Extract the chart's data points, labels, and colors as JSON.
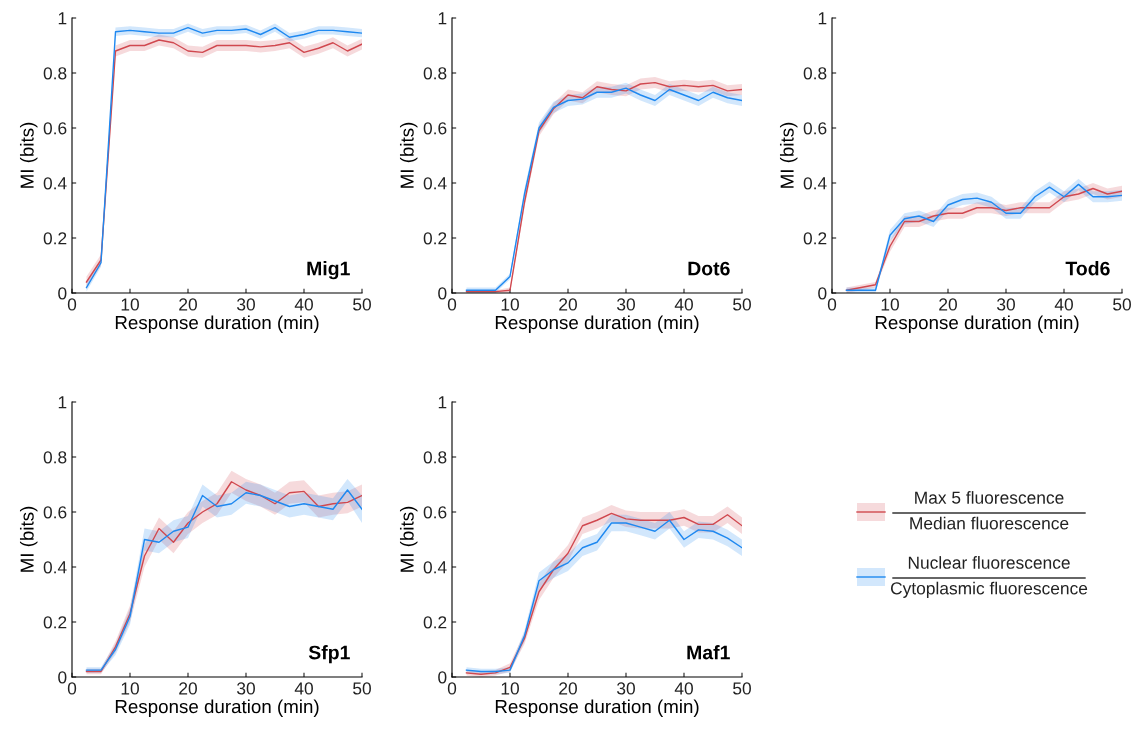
{
  "chart_data": [
    {
      "type": "line",
      "xlabel": "Response duration (min)",
      "ylabel": "MI (bits)",
      "annotations": [
        "Mig1"
      ],
      "xlim": [
        0,
        50
      ],
      "ylim": [
        0,
        1
      ],
      "xticks": [
        0,
        10,
        20,
        30,
        40,
        50
      ],
      "yticks": [
        0,
        0.2,
        0.4,
        0.6,
        0.8,
        1
      ],
      "grid": false,
      "legend": false,
      "marker": "none",
      "line_style": "solid",
      "x": [
        2.5,
        5,
        7.5,
        10,
        12.5,
        15,
        17.5,
        20,
        22.5,
        25,
        27.5,
        30,
        32.5,
        35,
        37.5,
        40,
        42.5,
        45,
        47.5,
        50
      ],
      "series": [
        {
          "color": "#d0484f",
          "values": [
            0.04,
            0.12,
            0.88,
            0.9,
            0.9,
            0.92,
            0.91,
            0.88,
            0.875,
            0.9,
            0.9,
            0.9,
            0.895,
            0.9,
            0.91,
            0.875,
            0.89,
            0.91,
            0.88,
            0.905
          ],
          "lower": [
            0.02,
            0.1,
            0.86,
            0.88,
            0.88,
            0.9,
            0.89,
            0.86,
            0.855,
            0.88,
            0.88,
            0.88,
            0.875,
            0.88,
            0.89,
            0.855,
            0.87,
            0.89,
            0.86,
            0.885
          ],
          "upper": [
            0.06,
            0.14,
            0.9,
            0.92,
            0.92,
            0.94,
            0.93,
            0.9,
            0.895,
            0.92,
            0.92,
            0.92,
            0.915,
            0.92,
            0.93,
            0.895,
            0.91,
            0.93,
            0.9,
            0.925
          ]
        },
        {
          "color": "#1e88f0",
          "values": [
            0.02,
            0.11,
            0.95,
            0.955,
            0.95,
            0.945,
            0.945,
            0.965,
            0.945,
            0.955,
            0.955,
            0.96,
            0.94,
            0.965,
            0.93,
            0.94,
            0.955,
            0.955,
            0.95,
            0.945
          ],
          "lower": [
            0.005,
            0.095,
            0.935,
            0.94,
            0.935,
            0.93,
            0.93,
            0.95,
            0.93,
            0.94,
            0.94,
            0.945,
            0.925,
            0.95,
            0.915,
            0.925,
            0.94,
            0.94,
            0.935,
            0.93
          ],
          "upper": [
            0.035,
            0.125,
            0.965,
            0.97,
            0.965,
            0.96,
            0.96,
            0.98,
            0.96,
            0.97,
            0.97,
            0.975,
            0.955,
            0.98,
            0.945,
            0.955,
            0.97,
            0.97,
            0.965,
            0.96
          ]
        }
      ]
    },
    {
      "type": "line",
      "xlabel": "Response duration (min)",
      "ylabel": "MI (bits)",
      "annotations": [
        "Dot6"
      ],
      "xlim": [
        0,
        50
      ],
      "ylim": [
        0,
        1
      ],
      "xticks": [
        0,
        10,
        20,
        30,
        40,
        50
      ],
      "yticks": [
        0,
        0.2,
        0.4,
        0.6,
        0.8,
        1
      ],
      "grid": false,
      "legend": false,
      "marker": "none",
      "line_style": "solid",
      "x": [
        2.5,
        5,
        7.5,
        10,
        12.5,
        15,
        17.5,
        20,
        22.5,
        25,
        27.5,
        30,
        32.5,
        35,
        37.5,
        40,
        42.5,
        45,
        47.5,
        50
      ],
      "series": [
        {
          "color": "#d0484f",
          "values": [
            0.005,
            0.005,
            0.005,
            0.01,
            0.33,
            0.59,
            0.67,
            0.72,
            0.71,
            0.75,
            0.74,
            0.735,
            0.76,
            0.765,
            0.75,
            0.755,
            0.75,
            0.755,
            0.735,
            0.74
          ],
          "lower": [
            0,
            0,
            0,
            0,
            0.31,
            0.57,
            0.65,
            0.7,
            0.69,
            0.73,
            0.72,
            0.715,
            0.74,
            0.745,
            0.73,
            0.735,
            0.73,
            0.735,
            0.715,
            0.72
          ],
          "upper": [
            0.01,
            0.01,
            0.01,
            0.02,
            0.35,
            0.61,
            0.69,
            0.74,
            0.73,
            0.77,
            0.76,
            0.755,
            0.78,
            0.785,
            0.77,
            0.775,
            0.77,
            0.775,
            0.755,
            0.76
          ]
        },
        {
          "color": "#1e88f0",
          "values": [
            0.01,
            0.01,
            0.01,
            0.06,
            0.36,
            0.6,
            0.675,
            0.7,
            0.705,
            0.73,
            0.73,
            0.745,
            0.72,
            0.7,
            0.74,
            0.72,
            0.7,
            0.73,
            0.71,
            0.7
          ],
          "lower": [
            0,
            0,
            0,
            0.05,
            0.34,
            0.58,
            0.655,
            0.68,
            0.685,
            0.71,
            0.71,
            0.725,
            0.7,
            0.68,
            0.72,
            0.7,
            0.68,
            0.71,
            0.69,
            0.68
          ],
          "upper": [
            0.02,
            0.02,
            0.02,
            0.07,
            0.38,
            0.62,
            0.695,
            0.72,
            0.725,
            0.75,
            0.75,
            0.765,
            0.74,
            0.72,
            0.76,
            0.74,
            0.72,
            0.75,
            0.73,
            0.72
          ]
        }
      ]
    },
    {
      "type": "line",
      "xlabel": "Response duration (min)",
      "ylabel": "MI (bits)",
      "annotations": [
        "Tod6"
      ],
      "xlim": [
        0,
        50
      ],
      "ylim": [
        0,
        1
      ],
      "xticks": [
        0,
        10,
        20,
        30,
        40,
        50
      ],
      "yticks": [
        0,
        0.2,
        0.4,
        0.6,
        0.8,
        1
      ],
      "grid": false,
      "legend": false,
      "marker": "none",
      "line_style": "solid",
      "x": [
        2.5,
        5,
        7.5,
        10,
        12.5,
        15,
        17.5,
        20,
        22.5,
        25,
        27.5,
        30,
        32.5,
        35,
        37.5,
        40,
        42.5,
        45,
        47.5,
        50
      ],
      "series": [
        {
          "color": "#d0484f",
          "values": [
            0.01,
            0.02,
            0.03,
            0.17,
            0.26,
            0.26,
            0.28,
            0.29,
            0.29,
            0.31,
            0.31,
            0.3,
            0.31,
            0.31,
            0.31,
            0.35,
            0.36,
            0.38,
            0.36,
            0.37
          ],
          "lower": [
            0,
            0.01,
            0.02,
            0.15,
            0.24,
            0.24,
            0.26,
            0.27,
            0.27,
            0.29,
            0.29,
            0.28,
            0.29,
            0.29,
            0.29,
            0.33,
            0.34,
            0.36,
            0.34,
            0.35
          ],
          "upper": [
            0.02,
            0.03,
            0.04,
            0.19,
            0.28,
            0.28,
            0.3,
            0.31,
            0.31,
            0.33,
            0.33,
            0.32,
            0.33,
            0.33,
            0.33,
            0.37,
            0.38,
            0.4,
            0.38,
            0.39
          ]
        },
        {
          "color": "#1e88f0",
          "values": [
            0.01,
            0.01,
            0.01,
            0.21,
            0.27,
            0.28,
            0.26,
            0.32,
            0.34,
            0.345,
            0.33,
            0.29,
            0.29,
            0.35,
            0.385,
            0.35,
            0.395,
            0.35,
            0.35,
            0.355
          ],
          "lower": [
            0,
            0,
            0,
            0.19,
            0.25,
            0.26,
            0.24,
            0.3,
            0.32,
            0.325,
            0.31,
            0.27,
            0.27,
            0.33,
            0.365,
            0.33,
            0.375,
            0.33,
            0.33,
            0.335
          ],
          "upper": [
            0.02,
            0.02,
            0.02,
            0.23,
            0.29,
            0.3,
            0.28,
            0.34,
            0.36,
            0.365,
            0.35,
            0.31,
            0.31,
            0.37,
            0.405,
            0.37,
            0.415,
            0.37,
            0.37,
            0.375
          ]
        }
      ]
    },
    {
      "type": "line",
      "xlabel": "Response duration (min)",
      "ylabel": "MI (bits)",
      "annotations": [
        "Sfp1"
      ],
      "xlim": [
        0,
        50
      ],
      "ylim": [
        0,
        1
      ],
      "xticks": [
        0,
        10,
        20,
        30,
        40,
        50
      ],
      "yticks": [
        0,
        0.2,
        0.4,
        0.6,
        0.8,
        1
      ],
      "grid": false,
      "legend": false,
      "marker": "none",
      "line_style": "solid",
      "x": [
        2.5,
        5,
        7.5,
        10,
        12.5,
        15,
        17.5,
        20,
        22.5,
        25,
        27.5,
        30,
        32.5,
        35,
        37.5,
        40,
        42.5,
        45,
        47.5,
        50
      ],
      "series": [
        {
          "color": "#d0484f",
          "values": [
            0.02,
            0.02,
            0.11,
            0.23,
            0.44,
            0.54,
            0.49,
            0.56,
            0.6,
            0.63,
            0.71,
            0.68,
            0.66,
            0.63,
            0.67,
            0.675,
            0.62,
            0.63,
            0.635,
            0.66
          ],
          "lower": [
            0.01,
            0.01,
            0.09,
            0.2,
            0.4,
            0.5,
            0.45,
            0.52,
            0.56,
            0.59,
            0.67,
            0.64,
            0.62,
            0.59,
            0.63,
            0.635,
            0.58,
            0.59,
            0.595,
            0.62
          ],
          "upper": [
            0.03,
            0.03,
            0.13,
            0.26,
            0.48,
            0.58,
            0.53,
            0.6,
            0.64,
            0.67,
            0.75,
            0.72,
            0.7,
            0.67,
            0.71,
            0.715,
            0.66,
            0.67,
            0.675,
            0.7
          ]
        },
        {
          "color": "#1e88f0",
          "values": [
            0.025,
            0.025,
            0.1,
            0.22,
            0.5,
            0.49,
            0.53,
            0.545,
            0.66,
            0.62,
            0.63,
            0.67,
            0.66,
            0.64,
            0.62,
            0.63,
            0.62,
            0.61,
            0.68,
            0.61
          ],
          "lower": [
            0.015,
            0.015,
            0.08,
            0.19,
            0.46,
            0.45,
            0.49,
            0.505,
            0.62,
            0.58,
            0.59,
            0.63,
            0.62,
            0.6,
            0.58,
            0.59,
            0.58,
            0.57,
            0.64,
            0.56
          ],
          "upper": [
            0.035,
            0.035,
            0.12,
            0.25,
            0.54,
            0.53,
            0.57,
            0.585,
            0.7,
            0.66,
            0.67,
            0.71,
            0.7,
            0.68,
            0.66,
            0.67,
            0.66,
            0.65,
            0.72,
            0.66
          ]
        }
      ]
    },
    {
      "type": "line",
      "xlabel": "Response duration (min)",
      "ylabel": "MI (bits)",
      "annotations": [
        "Maf1"
      ],
      "xlim": [
        0,
        50
      ],
      "ylim": [
        0,
        1
      ],
      "xticks": [
        0,
        10,
        20,
        30,
        40,
        50
      ],
      "yticks": [
        0,
        0.2,
        0.4,
        0.6,
        0.8,
        1
      ],
      "grid": false,
      "legend": "right",
      "marker": "none",
      "line_style": "solid",
      "x": [
        2.5,
        5,
        7.5,
        10,
        12.5,
        15,
        17.5,
        20,
        22.5,
        25,
        27.5,
        30,
        32.5,
        35,
        37.5,
        40,
        42.5,
        45,
        47.5,
        50
      ],
      "series": [
        {
          "name": "Max 5 fluorescence\nMedian fluorescence",
          "color": "#d0484f",
          "values": [
            0.015,
            0.01,
            0.015,
            0.035,
            0.14,
            0.31,
            0.39,
            0.45,
            0.55,
            0.57,
            0.595,
            0.575,
            0.57,
            0.57,
            0.57,
            0.58,
            0.555,
            0.555,
            0.59,
            0.55
          ],
          "lower": [
            0.005,
            0,
            0.005,
            0.02,
            0.12,
            0.28,
            0.36,
            0.42,
            0.52,
            0.54,
            0.565,
            0.545,
            0.54,
            0.54,
            0.54,
            0.55,
            0.525,
            0.525,
            0.56,
            0.52
          ],
          "upper": [
            0.025,
            0.02,
            0.025,
            0.05,
            0.16,
            0.34,
            0.42,
            0.48,
            0.58,
            0.6,
            0.625,
            0.605,
            0.6,
            0.6,
            0.6,
            0.61,
            0.585,
            0.585,
            0.62,
            0.58
          ]
        },
        {
          "name": "Nuclear fluorescence\nCytoplasmic fluorescence",
          "color": "#1e88f0",
          "values": [
            0.025,
            0.02,
            0.02,
            0.025,
            0.15,
            0.35,
            0.39,
            0.415,
            0.47,
            0.49,
            0.56,
            0.56,
            0.545,
            0.53,
            0.57,
            0.5,
            0.535,
            0.53,
            0.505,
            0.47
          ],
          "lower": [
            0.015,
            0.01,
            0.01,
            0.015,
            0.13,
            0.32,
            0.36,
            0.385,
            0.44,
            0.46,
            0.53,
            0.53,
            0.515,
            0.5,
            0.54,
            0.47,
            0.505,
            0.5,
            0.475,
            0.44
          ],
          "upper": [
            0.035,
            0.03,
            0.03,
            0.035,
            0.17,
            0.38,
            0.42,
            0.445,
            0.5,
            0.52,
            0.59,
            0.59,
            0.575,
            0.56,
            0.6,
            0.53,
            0.565,
            0.56,
            0.535,
            0.5
          ]
        }
      ]
    }
  ]
}
